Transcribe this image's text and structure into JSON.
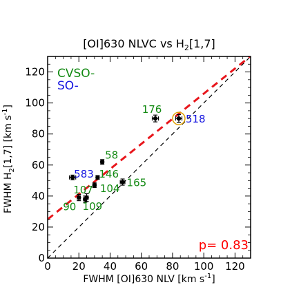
{
  "chart_data": {
    "type": "scatter",
    "title_main": "[OI]630 NLVC vs H",
    "title_sub": "2",
    "title_tail": "[1,7]",
    "xlabel": "FWHM [OI]630 NLV [km s",
    "xlabel_sup": "-1",
    "xlabel_tail": "]",
    "ylabel_main": "FWHM H",
    "ylabel_sub": "2",
    "ylabel_tail": "[1,7] [km s",
    "ylabel_sup": "-1",
    "ylabel_tail2": "]",
    "xlim": [
      0,
      130
    ],
    "ylim": [
      0,
      130
    ],
    "xticks": [
      "0",
      "20",
      "40",
      "60",
      "80",
      "100",
      "120"
    ],
    "yticks": [
      "0",
      "20",
      "40",
      "60",
      "80",
      "100",
      "120"
    ],
    "xtick_values": [
      0,
      20,
      40,
      60,
      80,
      100,
      120
    ],
    "ytick_values": [
      0,
      20,
      40,
      60,
      80,
      100,
      120
    ],
    "legend": [
      {
        "label": "CVSO-",
        "color": "#138a13"
      },
      {
        "label": "SO-",
        "color": "#1515e0"
      }
    ],
    "correlation_label": "p= 0.83",
    "correlation_color": "#ff0000",
    "fit_line": {
      "slope": 0.81,
      "intercept": 25,
      "color": "#e8161c"
    },
    "one_to_one_line": {
      "slope": 1,
      "intercept": 0,
      "color": "#000000"
    },
    "points": [
      {
        "label": "176",
        "x": 69,
        "y": 90,
        "xerr": 2,
        "yerr": 2.2,
        "group": "CVSO"
      },
      {
        "label": "518",
        "x": 84,
        "y": 90,
        "xerr": 2,
        "yerr": 2.5,
        "group": "SO",
        "circled": true
      },
      {
        "label": "58",
        "x": 35,
        "y": 62,
        "xerr": 1,
        "yerr": 1.5,
        "group": "CVSO"
      },
      {
        "label": "583",
        "x": 16,
        "y": 52,
        "xerr": 2,
        "yerr": 1.5,
        "group": "SO"
      },
      {
        "label": "146",
        "x": 32,
        "y": 52,
        "xerr": 1,
        "yerr": 1.2,
        "group": "CVSO"
      },
      {
        "label": "165",
        "x": 48,
        "y": 49,
        "xerr": 1.5,
        "yerr": 2,
        "group": "CVSO"
      },
      {
        "label": "104",
        "x": 30,
        "y": 47,
        "xerr": 1,
        "yerr": 1.5,
        "group": "CVSO"
      },
      {
        "label": "107",
        "x": 20,
        "y": 39,
        "xerr": 1,
        "yerr": 2,
        "group": "CVSO"
      },
      {
        "label": "90",
        "x": 24,
        "y": 38,
        "xerr": 1,
        "yerr": 2,
        "group": "CVSO"
      },
      {
        "label": "109",
        "x": 25,
        "y": 39,
        "xerr": 1,
        "yerr": 2.5,
        "group": "CVSO"
      }
    ],
    "group_colors": {
      "CVSO": "#138a13",
      "SO": "#1515e0"
    },
    "grid": false
  }
}
